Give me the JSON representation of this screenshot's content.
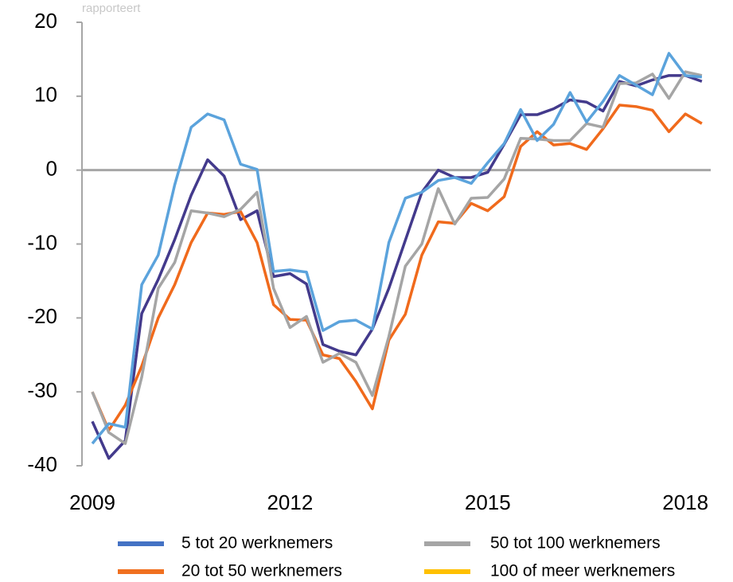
{
  "chart_data": {
    "type": "line",
    "annotation": "rapporteert",
    "categories": [
      "2009",
      null,
      null,
      null,
      null,
      null,
      null,
      null,
      null,
      null,
      null,
      null,
      "2012",
      null,
      null,
      null,
      null,
      null,
      null,
      null,
      null,
      null,
      null,
      null,
      "2015",
      null,
      null,
      null,
      null,
      null,
      null,
      null,
      null,
      null,
      null,
      null,
      "2018",
      null
    ],
    "ylim": [
      -40,
      20
    ],
    "yticks": [
      -40,
      -30,
      -20,
      -10,
      0,
      10,
      20
    ],
    "series": [
      {
        "name": "5 tot 20 werknemers",
        "color": "#433a8c",
        "legend_color": "#4472c4",
        "values": [
          -34,
          -39,
          -36.6,
          -19.4,
          -14.8,
          -9.4,
          -3.4,
          1.4,
          -0.8,
          -6.7,
          -5.5,
          -14.4,
          -14,
          -15.4,
          -23.6,
          -24.5,
          -25,
          -21.5,
          -16,
          -9.5,
          -3,
          0,
          -1,
          -1,
          -0.3,
          3.5,
          7.5,
          7.5,
          8.3,
          9.5,
          9.2,
          8,
          12,
          11.4,
          12.2,
          12.8,
          12.8,
          12
        ]
      },
      {
        "name": "20 tot 50 werknemers",
        "color": "#f06a1c",
        "legend_color": "#f07020",
        "values": [
          -30,
          -35.2,
          -31.8,
          -26.5,
          -20,
          -15.5,
          -9.8,
          -5.8,
          -6,
          -5.6,
          -9.8,
          -18.2,
          -20.2,
          -20.3,
          -25,
          -25.5,
          -28.6,
          -32.3,
          -23,
          -19.5,
          -11.5,
          -7,
          -7.2,
          -4.5,
          -5.5,
          -3.6,
          3.2,
          5.2,
          3.4,
          3.6,
          2.8,
          5.6,
          8.8,
          8.6,
          8.1,
          5.2,
          7.6,
          6.3
        ]
      },
      {
        "name": "50 tot 100 werknemers",
        "color": "#a5a5a5",
        "legend_color": "#a5a5a5",
        "values": [
          -30,
          -35.5,
          -37,
          -28,
          -16,
          -12.5,
          -5.5,
          -5.8,
          -6.3,
          -5.3,
          -3,
          -16,
          -21.3,
          -19.8,
          -26,
          -24.8,
          -26,
          -30.5,
          -22.5,
          -13,
          -10,
          -2.5,
          -7.3,
          -3.8,
          -3.7,
          -1.2,
          4.3,
          4.2,
          4,
          4,
          6.3,
          5.8,
          11.7,
          11.8,
          13,
          9.7,
          13.3,
          12.8
        ]
      },
      {
        "name": "100 of meer werknemers",
        "color": "#5ba3dc",
        "legend_color": "#ffc000",
        "values": [
          -37,
          -34.3,
          -34.8,
          -15.5,
          -11.5,
          -2,
          5.8,
          7.6,
          6.8,
          0.8,
          0.1,
          -13.7,
          -13.5,
          -13.8,
          -21.7,
          -20.5,
          -20.3,
          -21.5,
          -9.8,
          -3.8,
          -3,
          -1.4,
          -1,
          -1.8,
          1,
          3.6,
          8.2,
          4,
          6.2,
          10.5,
          6.5,
          9.3,
          12.8,
          11.5,
          10.2,
          15.8,
          12.8,
          12.6
        ]
      }
    ]
  }
}
